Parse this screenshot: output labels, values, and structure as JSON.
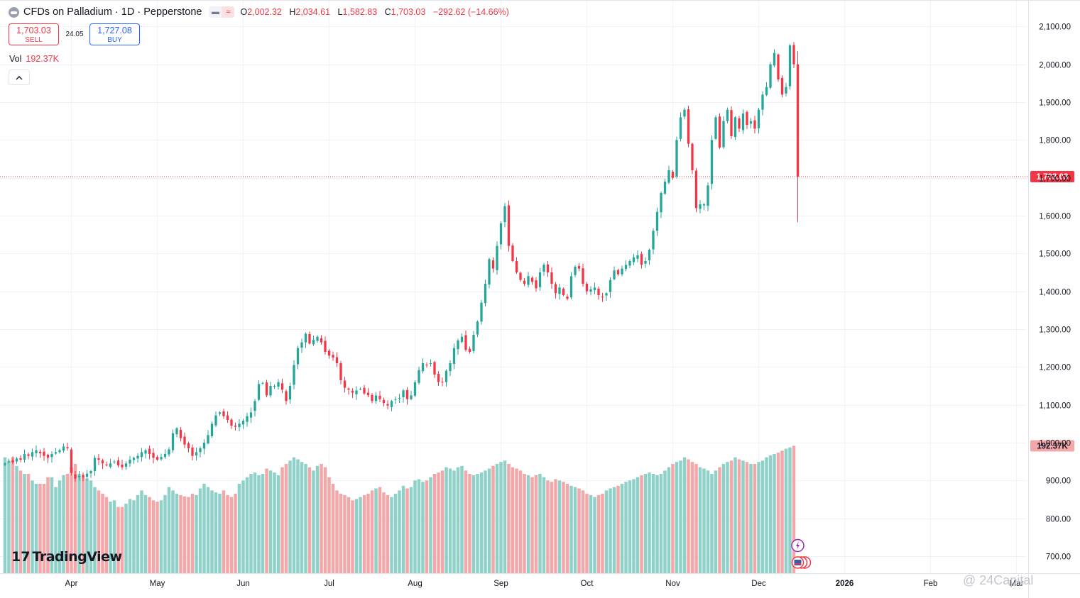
{
  "header": {
    "title": "CFDs on Palladium · 1D · Pepperstone",
    "badge_1": "▬",
    "badge_2": "≈",
    "o_label": "O",
    "o_value": "2,002.32",
    "h_label": "H",
    "h_value": "2,034.61",
    "l_label": "L",
    "l_value": "1,582.83",
    "c_label": "C",
    "c_value": "1,703.03",
    "change": "−292.62 (−14.66%)"
  },
  "trade": {
    "sell_price": "1,703.03",
    "sell_label": "SELL",
    "spread": "24.05",
    "buy_price": "1,727.08",
    "buy_label": "BUY"
  },
  "volume": {
    "label": "Vol",
    "value": "192.37K"
  },
  "logo": {
    "mark": "17",
    "text": "TradingView"
  },
  "watermark": "@ 24Capital",
  "colors": {
    "up": "#26a69a",
    "down": "#f23645",
    "up_vol": "#8fd0c8",
    "down_vol": "#f4a7a9",
    "buy": "#2962ff"
  },
  "chart_data": {
    "type": "candlestick",
    "title": "CFDs on Palladium",
    "timeframe": "1D",
    "ylim": [
      655,
      2170
    ],
    "y_ticks": [
      700,
      800,
      900,
      1000,
      1100,
      1200,
      1300,
      1400,
      1500,
      1600,
      1700,
      1800,
      1900,
      2000,
      2100
    ],
    "y_tick_labels": [
      "700.00",
      "800.00",
      "900.00",
      "1,000.00",
      "1,100.00",
      "1,200.00",
      "1,300.00",
      "1,400.00",
      "1,500.00",
      "1,600.00",
      "1,700.00",
      "1,800.00",
      "1,900.00",
      "2,000.00",
      "2,100.00"
    ],
    "x_labels": [
      "Apr",
      "May",
      "Jun",
      "Jul",
      "Aug",
      "Sep",
      "Oct",
      "Nov",
      "Dec",
      "2026",
      "Feb",
      "Mar"
    ],
    "x_label_index": [
      17,
      39,
      61,
      83,
      105,
      127,
      149,
      171,
      193,
      215,
      237,
      259
    ],
    "last_price": 1703.03,
    "last_price_label": "1,703.03",
    "last_volume_label": "192.37K",
    "volume_unit": "K",
    "closes": [
      945,
      950,
      948,
      958,
      955,
      970,
      965,
      975,
      980,
      972,
      965,
      960,
      970,
      975,
      980,
      990,
      985,
      920,
      905,
      912,
      908,
      918,
      925,
      960,
      955,
      945,
      940,
      945,
      950,
      940,
      935,
      945,
      955,
      960,
      965,
      975,
      980,
      970,
      960,
      955,
      962,
      970,
      982,
      1025,
      1038,
      1012,
      995,
      985,
      965,
      975,
      985,
      1000,
      1020,
      1050,
      1072,
      1080,
      1070,
      1060,
      1045,
      1042,
      1050,
      1058,
      1070,
      1080,
      1110,
      1155,
      1158,
      1125,
      1150,
      1150,
      1160,
      1140,
      1110,
      1150,
      1205,
      1250,
      1265,
      1288,
      1262,
      1272,
      1280,
      1265,
      1240,
      1230,
      1225,
      1210,
      1165,
      1145,
      1140,
      1132,
      1138,
      1142,
      1130,
      1125,
      1110,
      1125,
      1115,
      1105,
      1098,
      1110,
      1115,
      1118,
      1138,
      1115,
      1125,
      1160,
      1192,
      1210,
      1205,
      1210,
      1180,
      1160,
      1160,
      1190,
      1210,
      1250,
      1270,
      1280,
      1245,
      1240,
      1285,
      1320,
      1370,
      1420,
      1485,
      1460,
      1520,
      1580,
      1625,
      1520,
      1480,
      1450,
      1430,
      1420,
      1440,
      1425,
      1408,
      1450,
      1470,
      1450,
      1420,
      1395,
      1410,
      1390,
      1380,
      1440,
      1465,
      1460,
      1420,
      1400,
      1405,
      1410,
      1390,
      1385,
      1395,
      1430,
      1455,
      1445,
      1460,
      1470,
      1480,
      1490,
      1495,
      1470,
      1480,
      1510,
      1560,
      1610,
      1660,
      1690,
      1720,
      1700,
      1800,
      1860,
      1880,
      1790,
      1720,
      1620,
      1630,
      1630,
      1680,
      1800,
      1860,
      1780,
      1850,
      1880,
      1810,
      1860,
      1830,
      1870,
      1840,
      1850,
      1830,
      1880,
      1920,
      1940,
      2000,
      2030,
      1960,
      1920,
      1940,
      2050,
      2000,
      1703.03
    ],
    "volumes_k": [
      175,
      170,
      175,
      162,
      155,
      150,
      150,
      140,
      135,
      135,
      135,
      145,
      145,
      130,
      140,
      148,
      150,
      160,
      165,
      150,
      145,
      143,
      140,
      130,
      125,
      120,
      115,
      108,
      110,
      100,
      100,
      105,
      112,
      110,
      118,
      125,
      118,
      115,
      110,
      108,
      110,
      118,
      130,
      125,
      120,
      118,
      116,
      115,
      120,
      118,
      128,
      135,
      130,
      125,
      122,
      120,
      125,
      118,
      115,
      120,
      135,
      140,
      145,
      150,
      152,
      148,
      150,
      158,
      155,
      152,
      148,
      160,
      165,
      170,
      175,
      172,
      168,
      165,
      160,
      155,
      162,
      165,
      160,
      145,
      135,
      125,
      120,
      118,
      115,
      110,
      112,
      115,
      118,
      120,
      125,
      128,
      130,
      122,
      118,
      115,
      120,
      125,
      132,
      128,
      130,
      140,
      142,
      138,
      140,
      145,
      150,
      152,
      155,
      160,
      158,
      155,
      160,
      162,
      155,
      150,
      148,
      150,
      152,
      155,
      158,
      162,
      165,
      168,
      170,
      165,
      160,
      158,
      155,
      150,
      148,
      145,
      148,
      150,
      145,
      140,
      138,
      142,
      140,
      138,
      135,
      132,
      130,
      128,
      125,
      120,
      118,
      115,
      118,
      120,
      125,
      128,
      130,
      132,
      135,
      138,
      140,
      142,
      145,
      148,
      150,
      152,
      150,
      148,
      150,
      155,
      160,
      165,
      168,
      170,
      175,
      172,
      168,
      165,
      160,
      158,
      155,
      150,
      155,
      160,
      165,
      168,
      170,
      175,
      172,
      170,
      168,
      165,
      165,
      168,
      170,
      175,
      178,
      180,
      182,
      185,
      188,
      190,
      192.37
    ],
    "vol_ylim": [
      0,
      225
    ]
  }
}
